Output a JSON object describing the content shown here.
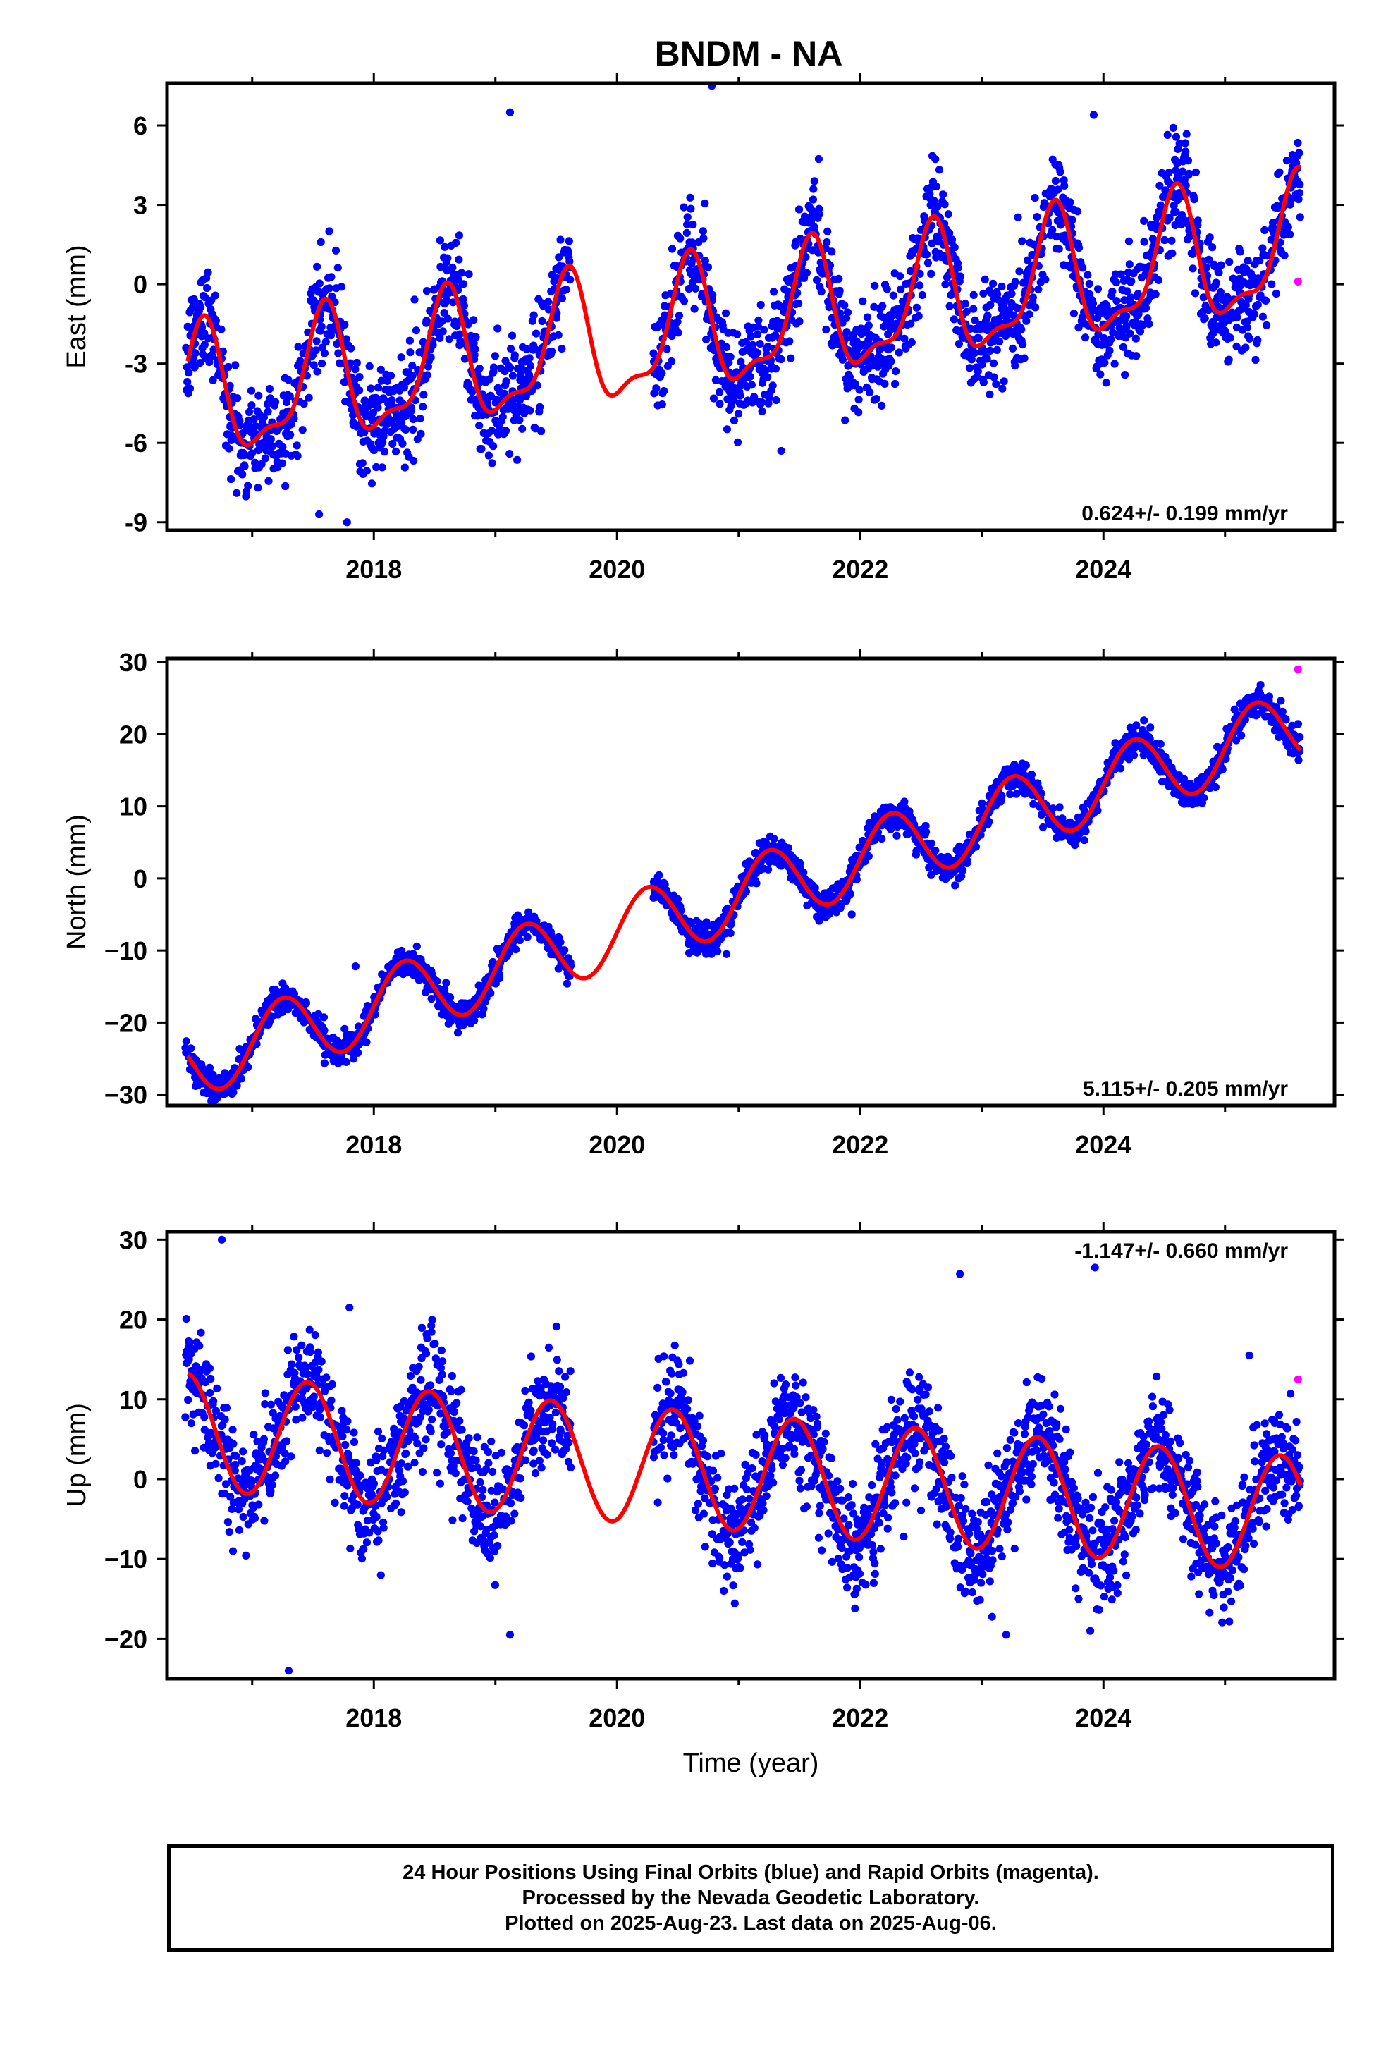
{
  "title": "BNDM - NA",
  "colors": {
    "final_orbits": "#0000ff",
    "rapid_orbits": "#ff00ff",
    "model": "#ff0000",
    "frame": "#000000"
  },
  "chart_data": [
    {
      "type": "scatter",
      "name": "east",
      "ylabel": "East (mm)",
      "xlabel": "",
      "xlim": [
        2016.3,
        2025.9
      ],
      "ylim": [
        -9.3,
        7.6
      ],
      "yticks": [
        -9,
        -6,
        -3,
        0,
        3,
        6
      ],
      "yticklabels": [
        "-9",
        "-6",
        "-3",
        "0",
        "3",
        "6"
      ],
      "xticks": [
        2018,
        2020,
        2022,
        2024
      ],
      "xticklabels": [
        "2018",
        "2020",
        "2022",
        "2024"
      ],
      "grid": false,
      "annotation": "0.624+/- 0.199 mm/yr",
      "model": {
        "rate": 0.624,
        "offset": -1.6,
        "ref_year": 2021.0,
        "seasonal": [
          {
            "period": 1.0,
            "cos": -2.0,
            "sin": -1.2
          },
          {
            "period": 0.5,
            "cos": 0.1,
            "sin": 0.85
          }
        ],
        "noise_sd": 1.0,
        "outliers": [
          [
            2017.55,
            -8.7
          ],
          [
            2017.78,
            -9.0
          ],
          [
            2019.12,
            6.5
          ],
          [
            2020.78,
            7.5
          ],
          [
            2021.35,
            -6.3
          ],
          [
            2023.92,
            6.4
          ]
        ]
      },
      "series_segments": [
        [
          2016.45,
          2019.62
        ],
        [
          2020.3,
          2025.62
        ]
      ],
      "rapid_points": [
        [
          2025.6,
          0.1
        ]
      ]
    },
    {
      "type": "scatter",
      "name": "north",
      "ylabel": "North (mm)",
      "xlabel": "",
      "xlim": [
        2016.3,
        2025.9
      ],
      "ylim": [
        -31.5,
        30.5
      ],
      "yticks": [
        -30,
        -20,
        -10,
        0,
        10,
        20,
        30
      ],
      "yticklabels": [
        "−30",
        "−20",
        "−10",
        "0",
        "10",
        "20",
        "30"
      ],
      "xticks": [
        2018,
        2020,
        2022,
        2024
      ],
      "xticklabels": [
        "2018",
        "2020",
        "2022",
        "2024"
      ],
      "grid": false,
      "annotation": "5.115+/- 0.205 mm/yr",
      "model": {
        "rate": 5.115,
        "offset": -2.4,
        "ref_year": 2021.0,
        "seasonal": [
          {
            "period": 1.0,
            "cos": 0.0,
            "sin": 5.0
          }
        ],
        "noise_sd": 1.0,
        "outliers": [
          [
            2017.85,
            -12.2
          ],
          [
            2020.9,
            -10.5
          ],
          [
            2021.93,
            -5.0
          ]
        ]
      },
      "series_segments": [
        [
          2016.45,
          2019.62
        ],
        [
          2020.3,
          2025.62
        ]
      ],
      "rapid_points": [
        [
          2025.6,
          29.0
        ]
      ]
    },
    {
      "type": "scatter",
      "name": "up",
      "ylabel": "Up (mm)",
      "xlabel": "Time (year)",
      "xlim": [
        2016.3,
        2025.9
      ],
      "ylim": [
        -25,
        31
      ],
      "yticks": [
        -20,
        -10,
        0,
        10,
        20,
        30
      ],
      "yticklabels": [
        "−20",
        "−10",
        "0",
        "10",
        "20",
        "30"
      ],
      "xticks": [
        2018,
        2020,
        2022,
        2024
      ],
      "xticklabels": [
        "2018",
        "2020",
        "2022",
        "2024"
      ],
      "grid": false,
      "annotation": "-1.147+/- 0.660 mm/yr",
      "model": {
        "rate": -1.147,
        "offset": 0.8,
        "ref_year": 2021.0,
        "seasonal": [
          {
            "period": 1.0,
            "cos": -7.0,
            "sin": 2.0
          }
        ],
        "noise_sd": 3.5,
        "outliers": [
          [
            2016.75,
            30.0
          ],
          [
            2017.8,
            21.5
          ],
          [
            2017.3,
            -24.0
          ],
          [
            2022.82,
            25.7
          ],
          [
            2023.93,
            26.5
          ],
          [
            2025.2,
            15.5
          ],
          [
            2019.12,
            -19.5
          ],
          [
            2023.2,
            -19.5
          ]
        ]
      },
      "series_segments": [
        [
          2016.45,
          2019.62
        ],
        [
          2020.3,
          2025.62
        ]
      ],
      "rapid_points": [
        [
          2025.6,
          12.5
        ]
      ]
    }
  ],
  "footer": {
    "line1": "24 Hour Positions Using Final Orbits (blue) and Rapid Orbits (magenta).",
    "line2": "Processed by the Nevada Geodetic Laboratory.",
    "line3": "Plotted on 2025-Aug-23. Last data on 2025-Aug-06."
  }
}
